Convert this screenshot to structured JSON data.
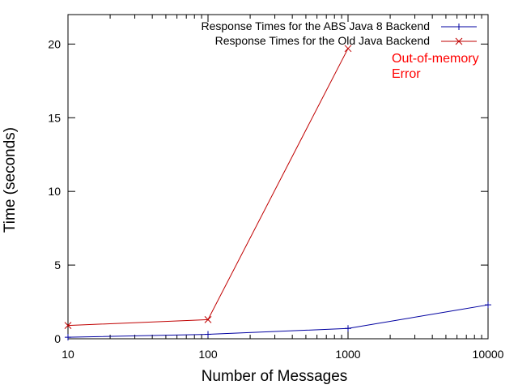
{
  "chart_data": {
    "type": "line",
    "title": "",
    "xlabel": "Number of Messages",
    "ylabel": "Time (seconds)",
    "x_scale": "log",
    "xlim": [
      10,
      10000
    ],
    "ylim": [
      0,
      22
    ],
    "x_ticks": [
      10,
      100,
      1000,
      10000
    ],
    "x_tick_labels": [
      "10",
      "100",
      "1000",
      "10000"
    ],
    "y_ticks": [
      0,
      5,
      10,
      15,
      20
    ],
    "y_tick_labels": [
      "0",
      "5",
      "10",
      "15",
      "20"
    ],
    "grid": false,
    "legend_position": "top-right",
    "series": [
      {
        "name": "Response Times for the ABS Java 8 Backend",
        "color": "#0000a0",
        "marker": "plus",
        "x": [
          10,
          100,
          1000,
          10000
        ],
        "y": [
          0.1,
          0.3,
          0.7,
          2.3
        ]
      },
      {
        "name": "Response Times for the Old Java Backend",
        "color": "#c00000",
        "marker": "cross",
        "x": [
          10,
          100,
          1000
        ],
        "y": [
          0.9,
          1.3,
          19.7
        ]
      }
    ],
    "annotations": [
      {
        "text_lines": [
          "Out-of-memory",
          "Error"
        ],
        "color": "#ff0000"
      }
    ]
  }
}
